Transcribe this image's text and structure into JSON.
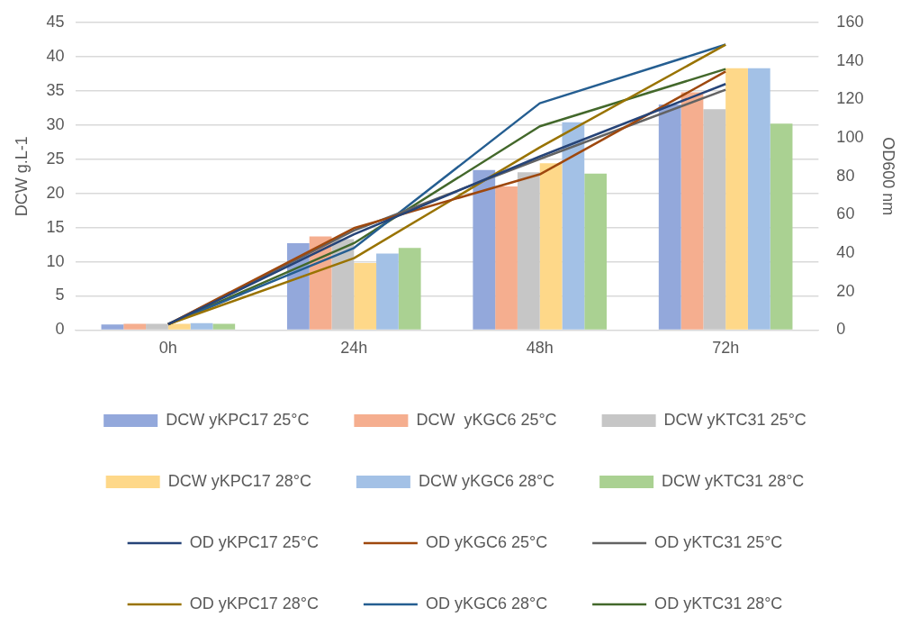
{
  "chart_data": {
    "type": "bar",
    "categories": [
      "0h",
      "24h",
      "48h",
      "72h"
    ],
    "ylabel": "DCW g.L-1",
    "y2label": "OD600 nm",
    "ylim": [
      0,
      45
    ],
    "yticks": [
      0,
      5,
      10,
      15,
      20,
      25,
      30,
      35,
      40,
      45
    ],
    "y2lim": [
      0,
      160
    ],
    "y2ticks": [
      0,
      20,
      40,
      60,
      80,
      100,
      120,
      140,
      160
    ],
    "grid": "y",
    "legend": "bottom",
    "marker": "none",
    "series": [
      {
        "name": "DCW yKPC17 25°C",
        "color": "#93a8db",
        "values": [
          0.8,
          12.7,
          23.4,
          33.0
        ]
      },
      {
        "name": "DCW  yKGC6 25°C",
        "color": "#f5ae8f",
        "values": [
          0.9,
          13.7,
          21.0,
          34.8
        ]
      },
      {
        "name": "DCW yKTC31 25°C",
        "color": "#c6c6c6",
        "values": [
          0.9,
          13.3,
          23.1,
          32.3
        ]
      },
      {
        "name": "DCW yKPC17 28°C",
        "color": "#fed889",
        "values": [
          0.9,
          9.8,
          24.4,
          38.3
        ]
      },
      {
        "name": "DCW yKGC6 28°C",
        "color": "#a3c1e6",
        "values": [
          1.0,
          11.2,
          30.4,
          38.3
        ]
      },
      {
        "name": "DCW yKTC31 28°C",
        "color": "#aad192",
        "values": [
          0.9,
          12.0,
          22.9,
          30.2
        ]
      },
      {
        "name": "OD yKPC17 25°C",
        "type": "line",
        "axis": "y2",
        "color": "#264478",
        "values": [
          3,
          49.8,
          90.3,
          128
        ]
      },
      {
        "name": "OD yKGC6 25°C",
        "type": "line",
        "axis": "y2",
        "color": "#9e480e",
        "values": [
          3,
          53,
          81,
          134.5
        ]
      },
      {
        "name": "OD yKTC31 25°C",
        "type": "line",
        "axis": "y2",
        "color": "#636363",
        "values": [
          3,
          51.8,
          89,
          125
        ]
      },
      {
        "name": "OD yKPC17 28°C",
        "type": "line",
        "axis": "y2",
        "color": "#997300",
        "values": [
          3,
          37.4,
          95,
          148.5
        ]
      },
      {
        "name": "OD yKGC6 28°C",
        "type": "line",
        "axis": "y2",
        "color": "#255e91",
        "values": [
          3,
          42.7,
          118,
          148.5
        ]
      },
      {
        "name": "OD yKTC31 28°C",
        "type": "line",
        "axis": "y2",
        "color": "#43682b",
        "values": [
          3,
          45.2,
          106,
          135.8
        ]
      }
    ]
  }
}
